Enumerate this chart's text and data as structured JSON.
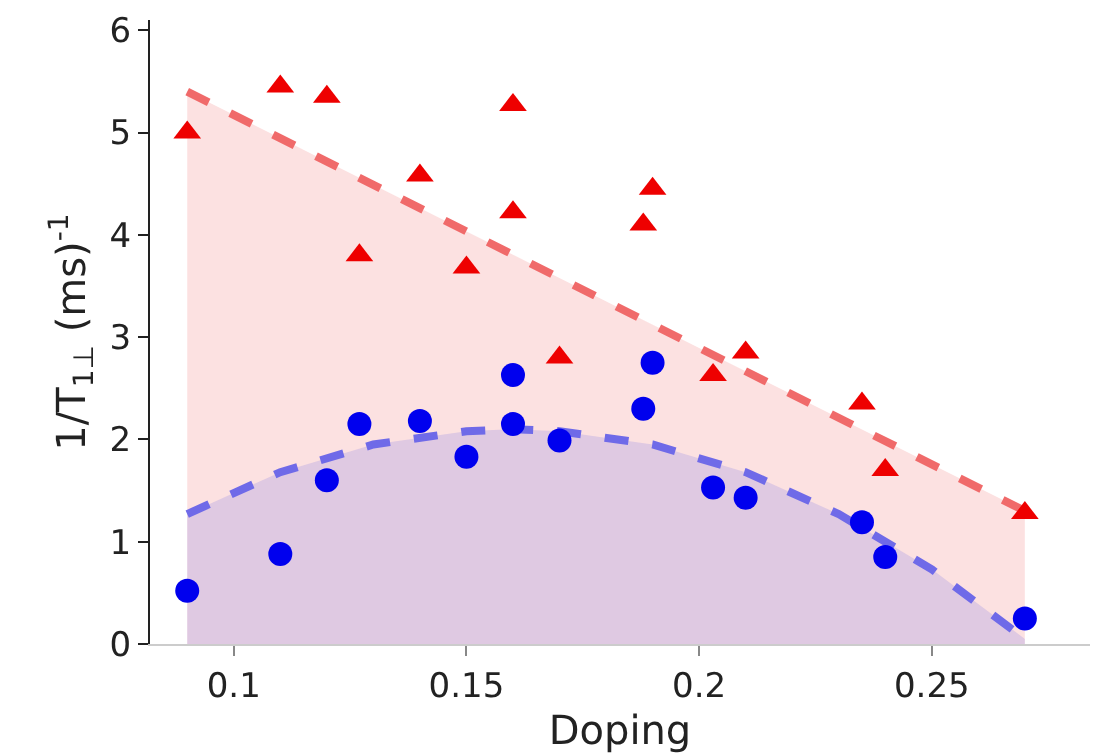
{
  "chart_data": {
    "type": "scatter",
    "xlabel": "Doping",
    "ylabel": "1/T$_{1⊥}$ (ms)$^{-1}$",
    "xlim": [
      0.082,
      0.284
    ],
    "xticks": [
      0.1,
      0.15,
      0.2,
      0.25
    ],
    "ylim": [
      0,
      6.1
    ],
    "yticks": [
      0,
      1,
      2,
      3,
      4,
      5,
      6
    ],
    "legend": false,
    "series": [
      {
        "type": "area",
        "color": "#f06a6a",
        "line_style": "dashed",
        "marker": "none",
        "x": [
          0.09,
          0.27
        ],
        "values": [
          5.4,
          1.3
        ]
      },
      {
        "type": "area",
        "color": "#6f6ae8",
        "line_style": "dashed",
        "marker": "none",
        "x": [
          0.09,
          0.11,
          0.13,
          0.15,
          0.16,
          0.17,
          0.19,
          0.21,
          0.23,
          0.25,
          0.27
        ],
        "values": [
          1.27,
          1.68,
          1.95,
          2.08,
          2.1,
          2.08,
          1.95,
          1.68,
          1.27,
          0.73,
          0.05
        ]
      },
      {
        "color": "#ee0000",
        "marker": "triangle",
        "x": [
          0.09,
          0.11,
          0.12,
          0.127,
          0.14,
          0.15,
          0.16,
          0.16,
          0.17,
          0.188,
          0.19,
          0.203,
          0.21,
          0.235,
          0.24,
          0.27
        ],
        "values": [
          5.0,
          5.45,
          5.35,
          3.8,
          4.58,
          3.68,
          5.27,
          4.22,
          2.8,
          4.1,
          4.45,
          2.63,
          2.85,
          2.35,
          1.7,
          1.28
        ]
      },
      {
        "color": "#0000ee",
        "marker": "circle",
        "x": [
          0.09,
          0.11,
          0.12,
          0.127,
          0.14,
          0.15,
          0.16,
          0.16,
          0.17,
          0.188,
          0.19,
          0.203,
          0.21,
          0.235,
          0.24,
          0.27
        ],
        "values": [
          0.52,
          0.88,
          1.6,
          2.15,
          2.18,
          1.83,
          2.63,
          2.15,
          1.99,
          2.3,
          2.75,
          1.53,
          1.43,
          1.19,
          0.85,
          0.25
        ]
      }
    ]
  }
}
